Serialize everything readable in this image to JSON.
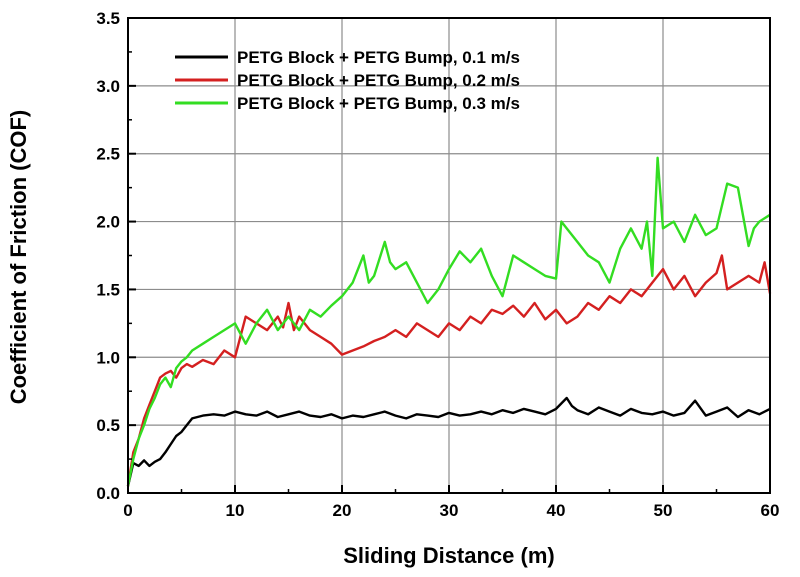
{
  "chart_data": {
    "type": "line",
    "title": "",
    "xlabel": "Sliding Distance (m)",
    "ylabel": "Coefficient of Friction (COF)",
    "xlim": [
      0,
      60
    ],
    "ylim": [
      0,
      3.5
    ],
    "xticks": [
      0,
      10,
      20,
      30,
      40,
      50,
      60
    ],
    "yticks": [
      0.0,
      0.5,
      1.0,
      1.5,
      2.0,
      2.5,
      3.0,
      3.5
    ],
    "xtick_labels": [
      "0",
      "10",
      "20",
      "30",
      "40",
      "50",
      "60"
    ],
    "ytick_labels": [
      "0.0",
      "0.5",
      "1.0",
      "1.5",
      "2.0",
      "2.5",
      "3.0",
      "3.5"
    ],
    "grid": true,
    "legend_position": "top-right",
    "series": [
      {
        "name": "PETG Block + PETG Bump, 0.1 m/s",
        "color": "#000000",
        "x": [
          0,
          0.5,
          1,
          1.5,
          2,
          2.5,
          3,
          3.5,
          4,
          4.5,
          5,
          5.5,
          6,
          7,
          8,
          9,
          10,
          11,
          12,
          13,
          14,
          15,
          16,
          17,
          18,
          19,
          20,
          21,
          22,
          23,
          24,
          25,
          26,
          27,
          28,
          29,
          30,
          31,
          32,
          33,
          34,
          35,
          36,
          37,
          38,
          39,
          40,
          40.5,
          41,
          41.5,
          42,
          43,
          44,
          45,
          46,
          47,
          48,
          49,
          50,
          51,
          52,
          53,
          54,
          55,
          56,
          57,
          58,
          59,
          60
        ],
        "y": [
          0.05,
          0.22,
          0.2,
          0.24,
          0.2,
          0.23,
          0.25,
          0.3,
          0.36,
          0.42,
          0.45,
          0.5,
          0.55,
          0.57,
          0.58,
          0.57,
          0.6,
          0.58,
          0.57,
          0.6,
          0.56,
          0.58,
          0.6,
          0.57,
          0.56,
          0.58,
          0.55,
          0.57,
          0.56,
          0.58,
          0.6,
          0.57,
          0.55,
          0.58,
          0.57,
          0.56,
          0.59,
          0.57,
          0.58,
          0.6,
          0.58,
          0.61,
          0.59,
          0.62,
          0.6,
          0.58,
          0.62,
          0.66,
          0.7,
          0.64,
          0.61,
          0.58,
          0.63,
          0.6,
          0.57,
          0.62,
          0.59,
          0.58,
          0.6,
          0.57,
          0.59,
          0.68,
          0.57,
          0.6,
          0.63,
          0.56,
          0.61,
          0.58,
          0.62
        ]
      },
      {
        "name": "PETG Block + PETG Bump, 0.2 m/s",
        "color": "#d42020",
        "x": [
          0,
          0.5,
          1,
          1.5,
          2,
          2.5,
          3,
          3.5,
          4,
          4.5,
          5,
          5.5,
          6,
          7,
          8,
          9,
          10,
          11,
          12,
          13,
          14,
          14.5,
          15,
          15.5,
          16,
          17,
          18,
          19,
          20,
          21,
          22,
          23,
          24,
          25,
          26,
          27,
          28,
          29,
          30,
          31,
          32,
          33,
          34,
          35,
          36,
          37,
          38,
          39,
          40,
          41,
          42,
          43,
          44,
          45,
          46,
          47,
          48,
          49,
          50,
          51,
          52,
          53,
          54,
          55,
          55.5,
          56,
          57,
          58,
          59,
          59.5,
          60
        ],
        "y": [
          0.05,
          0.3,
          0.4,
          0.55,
          0.65,
          0.75,
          0.85,
          0.88,
          0.9,
          0.85,
          0.92,
          0.95,
          0.93,
          0.98,
          0.95,
          1.05,
          1.0,
          1.3,
          1.25,
          1.2,
          1.3,
          1.22,
          1.4,
          1.2,
          1.3,
          1.2,
          1.15,
          1.1,
          1.02,
          1.05,
          1.08,
          1.12,
          1.15,
          1.2,
          1.15,
          1.25,
          1.2,
          1.15,
          1.25,
          1.2,
          1.3,
          1.25,
          1.35,
          1.32,
          1.38,
          1.3,
          1.4,
          1.28,
          1.35,
          1.25,
          1.3,
          1.4,
          1.35,
          1.45,
          1.4,
          1.5,
          1.45,
          1.55,
          1.65,
          1.5,
          1.6,
          1.45,
          1.55,
          1.62,
          1.75,
          1.5,
          1.55,
          1.6,
          1.55,
          1.7,
          1.47
        ]
      },
      {
        "name": "PETG Block + PETG Bump, 0.3 m/s",
        "color": "#33dd22",
        "x": [
          0,
          0.5,
          1,
          1.5,
          2,
          2.5,
          3,
          3.5,
          4,
          4.5,
          5,
          5.5,
          6,
          7,
          8,
          9,
          10,
          11,
          12,
          13,
          14,
          15,
          16,
          17,
          18,
          19,
          20,
          21,
          22,
          22.5,
          23,
          24,
          24.5,
          25,
          26,
          27,
          28,
          29,
          30,
          31,
          32,
          33,
          34,
          35,
          36,
          37,
          38,
          39,
          40,
          40.5,
          41,
          42,
          43,
          44,
          45,
          46,
          47,
          48,
          48.5,
          49,
          49.5,
          50,
          51,
          52,
          53,
          54,
          55,
          56,
          57,
          58,
          58.5,
          59,
          60
        ],
        "y": [
          0.05,
          0.25,
          0.4,
          0.5,
          0.62,
          0.7,
          0.8,
          0.85,
          0.78,
          0.92,
          0.97,
          1.0,
          1.05,
          1.1,
          1.15,
          1.2,
          1.25,
          1.1,
          1.25,
          1.35,
          1.2,
          1.3,
          1.2,
          1.35,
          1.3,
          1.38,
          1.45,
          1.55,
          1.75,
          1.55,
          1.6,
          1.85,
          1.7,
          1.65,
          1.7,
          1.55,
          1.4,
          1.5,
          1.65,
          1.78,
          1.7,
          1.8,
          1.6,
          1.45,
          1.75,
          1.7,
          1.65,
          1.6,
          1.58,
          2.0,
          1.95,
          1.85,
          1.75,
          1.7,
          1.55,
          1.8,
          1.95,
          1.8,
          2.0,
          1.6,
          2.47,
          1.95,
          2.0,
          1.85,
          2.05,
          1.9,
          1.95,
          2.28,
          2.25,
          1.82,
          1.95,
          2.0,
          2.05
        ]
      }
    ]
  }
}
